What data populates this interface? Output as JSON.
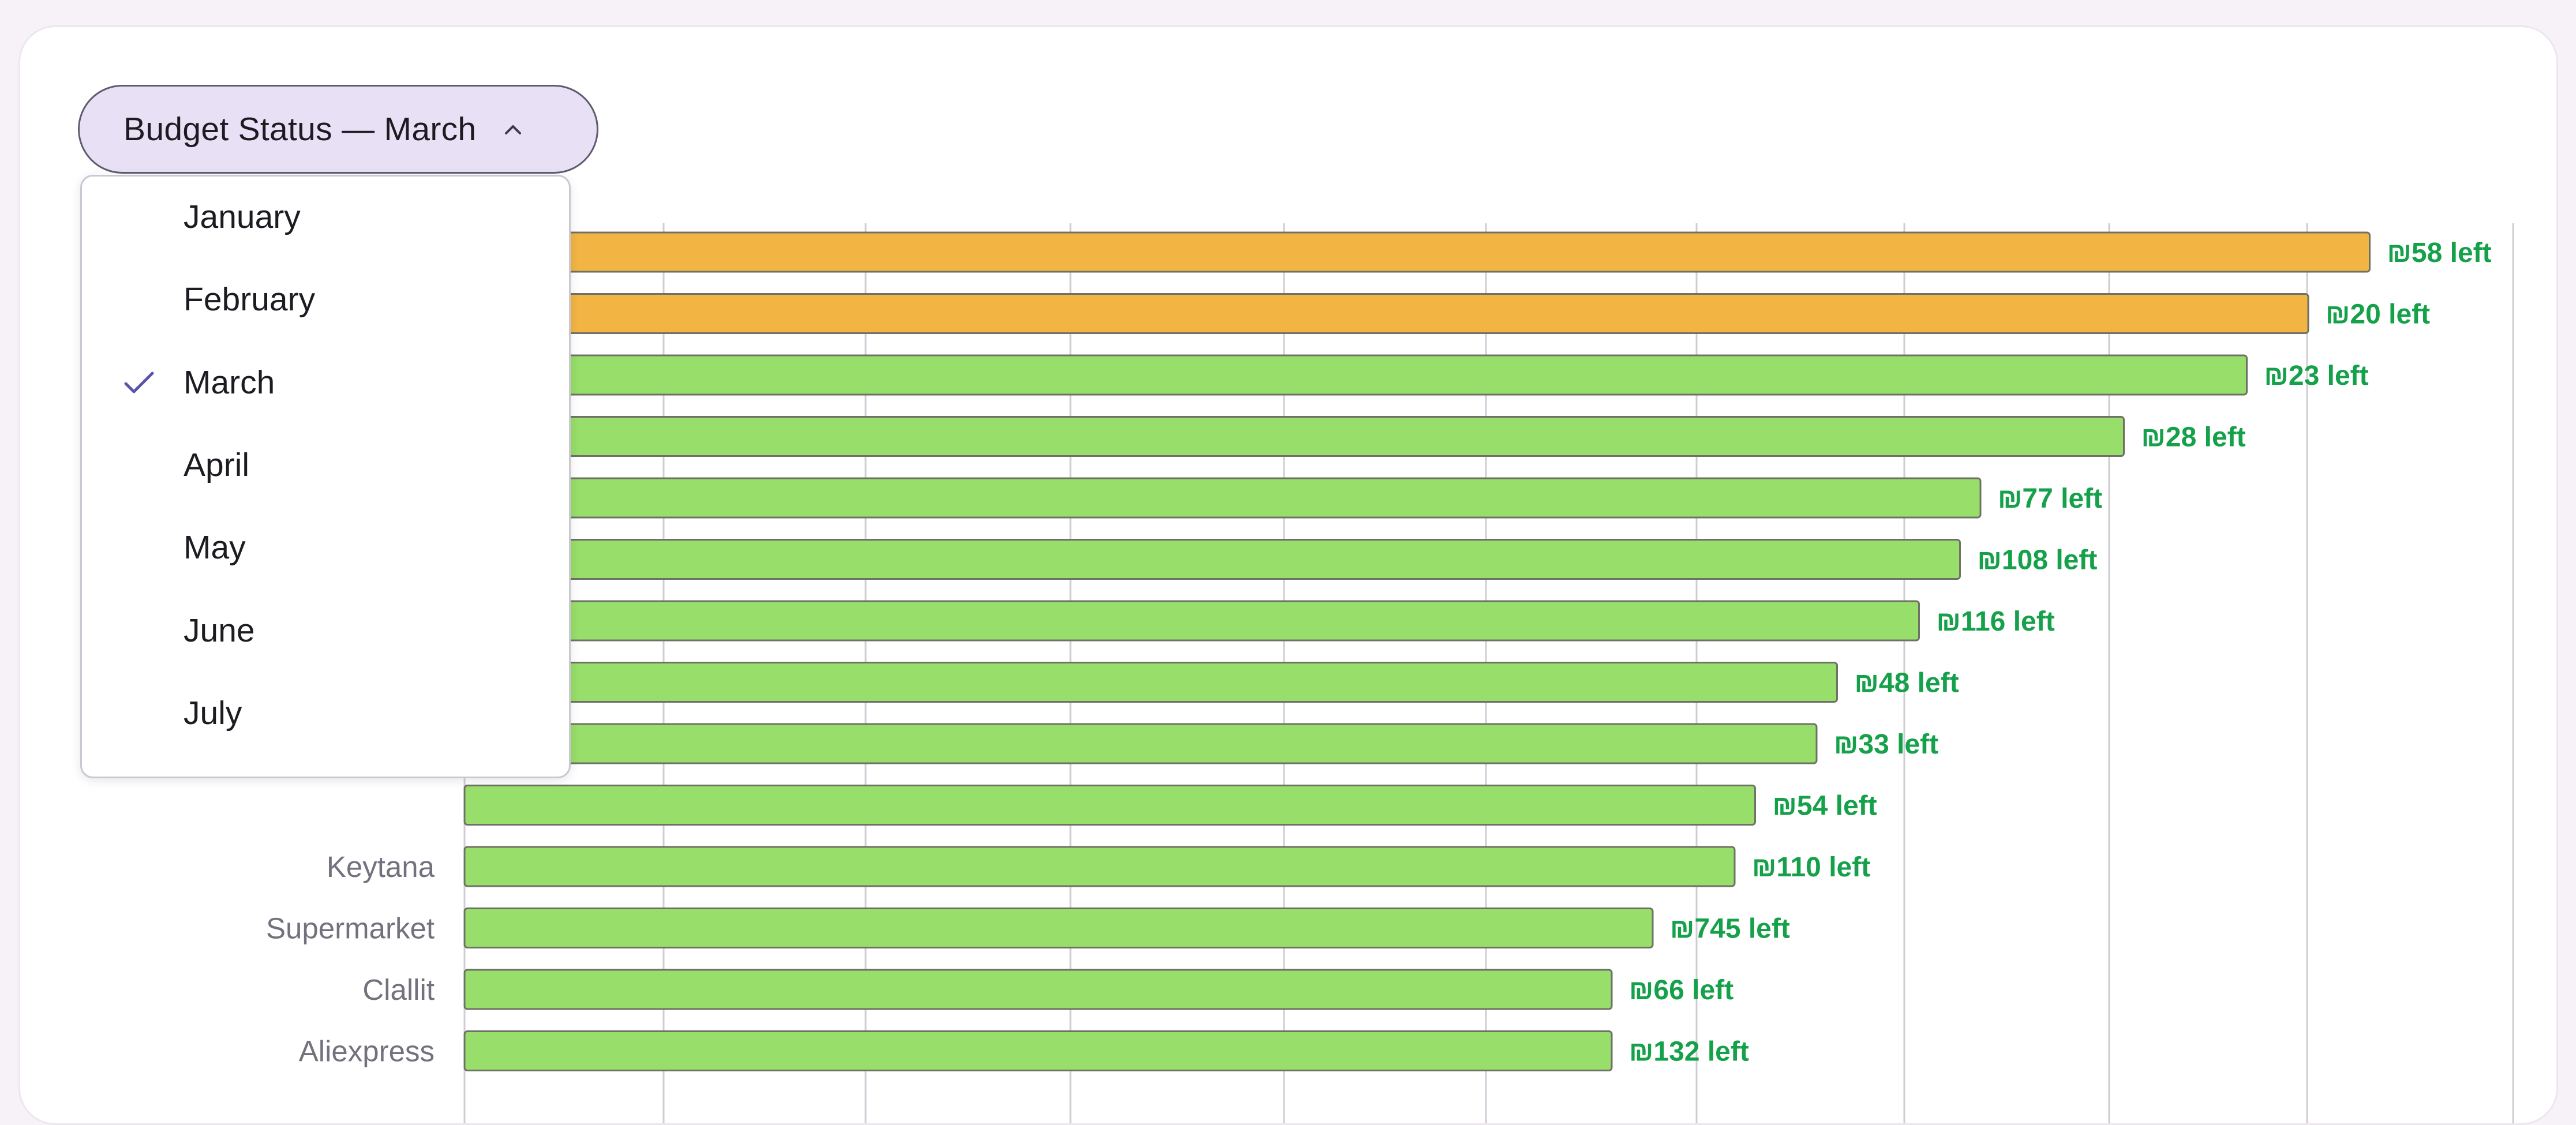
{
  "dropdown": {
    "label": "Budget Status — March",
    "selected": "March",
    "options": [
      {
        "label": "January",
        "selected": false
      },
      {
        "label": "February",
        "selected": false
      },
      {
        "label": "March",
        "selected": true
      },
      {
        "label": "April",
        "selected": false
      },
      {
        "label": "May",
        "selected": false
      },
      {
        "label": "June",
        "selected": false
      },
      {
        "label": "July",
        "selected": false
      }
    ]
  },
  "icons": {
    "dropdown_toggle": "chevron-up-icon",
    "selected_option": "checkmark-icon"
  },
  "colors": {
    "near_limit_bar": "#F2B544",
    "ok_bar": "#98DE6A",
    "remaining_text": "#15a04a",
    "category_label": "#74707d",
    "grid": "#cfcdd4"
  },
  "chart_data": {
    "type": "bar",
    "orientation": "horizontal",
    "grid": true,
    "categories": [
      "",
      "",
      "",
      "",
      "",
      "",
      "",
      "",
      "",
      "",
      "Keytana",
      "Supermarket",
      "Clallit",
      "Aliexpress"
    ],
    "values": [
      93,
      90,
      87,
      81,
      74,
      73,
      71,
      67,
      66,
      63,
      62,
      58,
      56,
      56
    ],
    "status": [
      "warning",
      "warning",
      "ok",
      "ok",
      "ok",
      "ok",
      "ok",
      "ok",
      "ok",
      "ok",
      "ok",
      "ok",
      "ok",
      "ok"
    ],
    "remaining_labels": [
      "₪58 left",
      "₪20 left",
      "₪23 left",
      "₪28 left",
      "₪77 left",
      "₪108 left",
      "₪116 left",
      "₪48 left",
      "₪33 left",
      "₪54 left",
      "₪110 left",
      "₪745 left",
      "₪66 left",
      "₪132 left"
    ],
    "xlim": [
      0,
      100
    ]
  }
}
